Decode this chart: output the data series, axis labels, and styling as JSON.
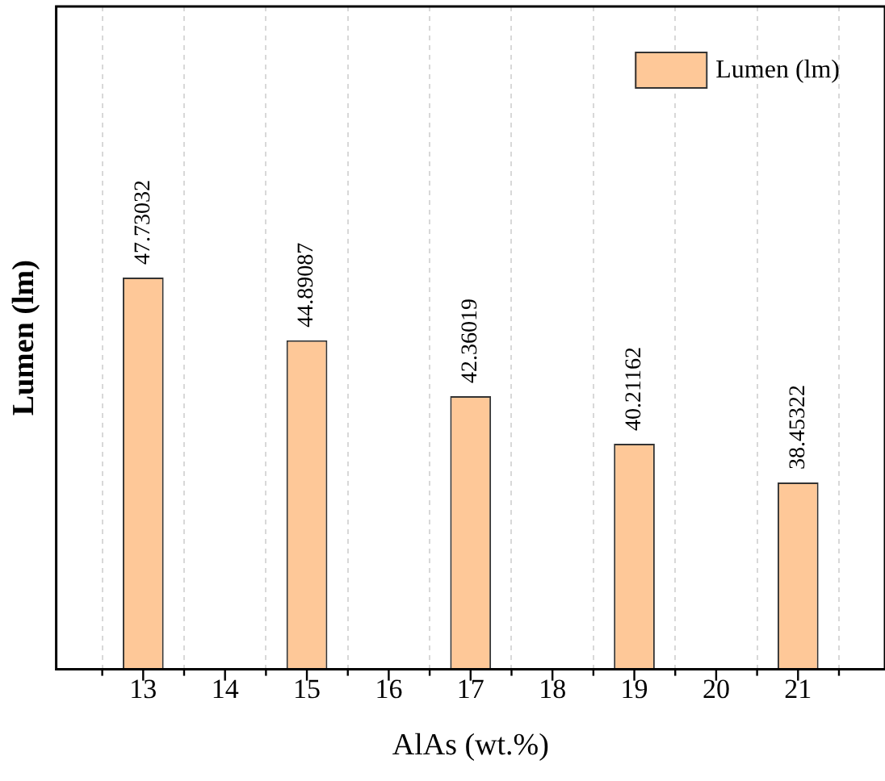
{
  "chart_data": {
    "type": "bar",
    "xlabel": "AlAs (wt.%)",
    "ylabel": "Lumen (lm)",
    "x": [
      13,
      15,
      17,
      19,
      21
    ],
    "series": [
      {
        "name": "Lumen (lm)",
        "color": "#fec898",
        "values": [
          47.73032,
          44.89087,
          42.36019,
          40.21162,
          38.45322
        ]
      }
    ],
    "xlim": [
      12.5,
      21.5
    ],
    "xticks": [
      13,
      14,
      15,
      16,
      17,
      18,
      19,
      20,
      21
    ],
    "ylim": [
      30,
      60
    ],
    "tick_labels": "x",
    "grid": "x",
    "legend": "top right",
    "data_labels": true
  }
}
